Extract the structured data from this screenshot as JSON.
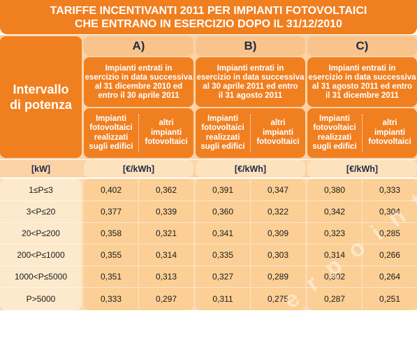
{
  "title": {
    "line1": "TARIFFE INCENTIVANTI 2011 PER IMPIANTI FOTOVOLTAICI",
    "line2": "CHE ENTRANO IN ESERCIZIO DOPO IL 31/12/2010"
  },
  "left_header": {
    "line1": "Intervallo",
    "line2": "di potenza"
  },
  "sections": [
    {
      "letter": "A)",
      "desc": [
        "Impianti entrati in",
        "esercizio in data successiva",
        "al 31 dicembre 2010 ed",
        "entro il 30 aprile 2011"
      ],
      "sub1": [
        "Impianti",
        "fotovoltaici",
        "realizzati",
        "sugli edifici"
      ],
      "sub2": [
        "altri",
        "impianti",
        "fotovoltaici"
      ],
      "unit": "[€/kWh]"
    },
    {
      "letter": "B)",
      "desc": [
        "Impianti entrati in",
        "esercizio in data successiva",
        "al 30 aprile 2011 ed entro",
        "il 31 agosto 2011"
      ],
      "sub1": [
        "Impianti",
        "fotovoltaici",
        "realizzati",
        "sugli edifici"
      ],
      "sub2": [
        "altri",
        "impianti",
        "fotovoltaici"
      ],
      "unit": "[€/kWh]"
    },
    {
      "letter": "C)",
      "desc": [
        "Impianti entrati in",
        "esercizio in data successiva",
        "al 31 agosto 2011 ed entro",
        "il 31 dicembre 2011"
      ],
      "sub1": [
        "Impianti",
        "fotovoltaici",
        "realizzati",
        "sugli edifici"
      ],
      "sub2": [
        "altri",
        "impianti",
        "fotovoltaici"
      ],
      "unit": "[€/kWh]"
    }
  ],
  "kw_label": "[kW]",
  "rows": [
    {
      "range": "1≤P≤3",
      "values": [
        "0,402",
        "0,362",
        "0,391",
        "0,347",
        "0,380",
        "0,333"
      ]
    },
    {
      "range": "3<P≤20",
      "values": [
        "0,377",
        "0,339",
        "0,360",
        "0,322",
        "0,342",
        "0,304"
      ]
    },
    {
      "range": "20<P≤200",
      "values": [
        "0,358",
        "0,321",
        "0,341",
        "0,309",
        "0,323",
        "0,285"
      ]
    },
    {
      "range": "200<P≤1000",
      "values": [
        "0,355",
        "0,314",
        "0,335",
        "0,303",
        "0,314",
        "0,266"
      ]
    },
    {
      "range": "1000<P≤5000",
      "values": [
        "0,351",
        "0,313",
        "0,327",
        "0,289",
        "0,302",
        "0,264"
      ]
    },
    {
      "range": "P>5000",
      "values": [
        "0,333",
        "0,297",
        "0,311",
        "0,275",
        "0,287",
        "0,251"
      ]
    }
  ],
  "watermark": "e n e r p o i n t . i t",
  "colors": {
    "orange": "#f07f20",
    "peach": "#fbd3a7",
    "cream": "#fde9cc",
    "header_text": "#1f2a44"
  }
}
